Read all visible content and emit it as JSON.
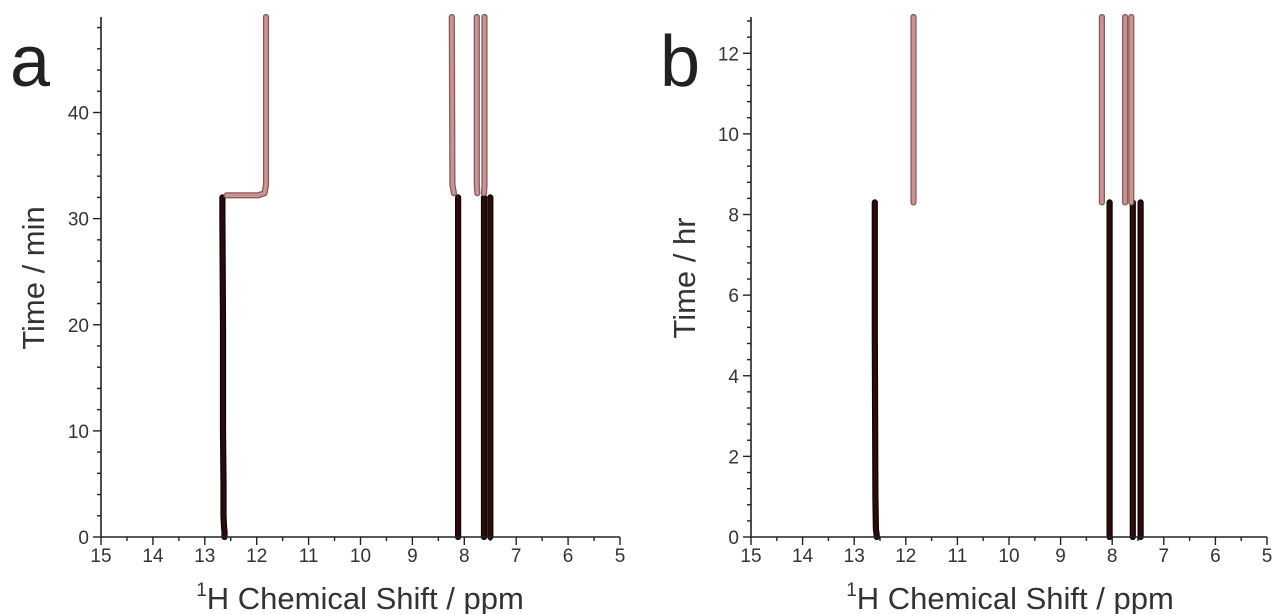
{
  "chart_data": [
    {
      "type": "line",
      "panel_label": "a",
      "xlabel_sup": "1",
      "xlabel": "H Chemical Shift / ppm",
      "ylabel": "Time / min",
      "xlim": [
        15,
        5
      ],
      "ylim": [
        0,
        49
      ],
      "x_ticks": [
        15,
        14,
        13,
        12,
        11,
        10,
        9,
        8,
        7,
        6,
        5
      ],
      "y_ticks": [
        0,
        10,
        20,
        30,
        40
      ],
      "colors": {
        "before": "#2b0c0c",
        "after": "#c99494"
      },
      "series": [
        {
          "color": "before",
          "points": [
            [
              12.62,
              0
            ],
            [
              12.62,
              0.5
            ],
            [
              12.63,
              1
            ],
            [
              12.64,
              2
            ],
            [
              12.64,
              5
            ],
            [
              12.65,
              10
            ],
            [
              12.65,
              20
            ],
            [
              12.66,
              30
            ],
            [
              12.66,
              32
            ]
          ]
        },
        {
          "color": "before",
          "points": [
            [
              8.12,
              0
            ],
            [
              8.12,
              32
            ]
          ]
        },
        {
          "color": "before",
          "points": [
            [
              7.62,
              0
            ],
            [
              7.62,
              32
            ]
          ]
        },
        {
          "color": "before",
          "points": [
            [
              7.5,
              0
            ],
            [
              7.5,
              32
            ]
          ]
        },
        {
          "color": "after",
          "points": [
            [
              12.58,
              32.2
            ],
            [
              12.2,
              32.2
            ],
            [
              11.97,
              32.2
            ],
            [
              11.85,
              32.4
            ],
            [
              11.82,
              33.2
            ],
            [
              11.82,
              49
            ]
          ]
        },
        {
          "color": "after",
          "points": [
            [
              8.2,
              32.4
            ],
            [
              8.23,
              33.2
            ],
            [
              8.24,
              49
            ]
          ]
        },
        {
          "color": "after",
          "points": [
            [
              7.75,
              32.4
            ],
            [
              7.76,
              33.2
            ],
            [
              7.76,
              49
            ]
          ]
        },
        {
          "color": "after",
          "points": [
            [
              7.62,
              32.4
            ],
            [
              7.61,
              33.2
            ],
            [
              7.61,
              49
            ]
          ]
        }
      ]
    },
    {
      "type": "line",
      "panel_label": "b",
      "xlabel_sup": "1",
      "xlabel": "H Chemical Shift / ppm",
      "ylabel": "Time / hr",
      "xlim": [
        15,
        5
      ],
      "ylim": [
        0,
        12.9
      ],
      "x_ticks": [
        15,
        14,
        13,
        12,
        11,
        10,
        9,
        8,
        7,
        6,
        5
      ],
      "y_ticks": [
        0,
        2,
        4,
        6,
        8,
        10,
        12
      ],
      "colors": {
        "before": "#2b0c0c",
        "after": "#c99494"
      },
      "series": [
        {
          "color": "before",
          "points": [
            [
              12.56,
              0
            ],
            [
              12.58,
              0.2
            ],
            [
              12.59,
              1
            ],
            [
              12.6,
              5
            ],
            [
              12.6,
              8.3
            ]
          ]
        },
        {
          "color": "before",
          "points": [
            [
              8.05,
              0
            ],
            [
              8.05,
              8.3
            ]
          ]
        },
        {
          "color": "before",
          "points": [
            [
              7.6,
              0
            ],
            [
              7.6,
              8.3
            ]
          ]
        },
        {
          "color": "before",
          "points": [
            [
              7.45,
              0
            ],
            [
              7.45,
              8.3
            ]
          ]
        },
        {
          "color": "after",
          "points": [
            [
              11.85,
              8.3
            ],
            [
              11.85,
              12.9
            ]
          ]
        },
        {
          "color": "after",
          "points": [
            [
              8.2,
              8.3
            ],
            [
              8.2,
              12.9
            ]
          ]
        },
        {
          "color": "after",
          "points": [
            [
              7.75,
              8.3
            ],
            [
              7.75,
              12.9
            ]
          ]
        },
        {
          "color": "after",
          "points": [
            [
              7.63,
              8.3
            ],
            [
              7.63,
              12.9
            ]
          ]
        }
      ]
    }
  ]
}
